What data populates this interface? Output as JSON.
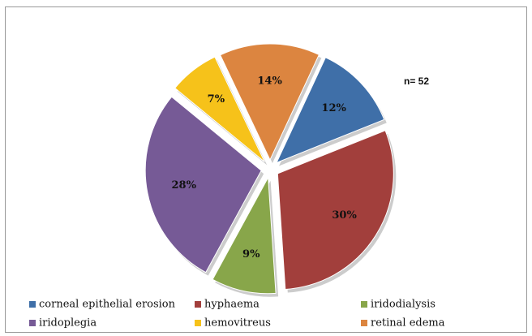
{
  "chart_data": {
    "type": "pie",
    "annotation": "n= 52",
    "categories": [
      "corneal epithelial erosion",
      "hyphaema",
      "iridodialysis",
      "iridoplegia",
      "hemovitreus",
      "retinal edema"
    ],
    "values": [
      12,
      30,
      9,
      28,
      7,
      14
    ],
    "value_labels": [
      "12%",
      "30%",
      "9%",
      "28%",
      "7%",
      "14%"
    ],
    "colors": [
      "#3f6fa8",
      "#a23f3c",
      "#88a64a",
      "#765a96",
      "#f6c21a",
      "#dc8540"
    ],
    "legend": "bottom"
  }
}
